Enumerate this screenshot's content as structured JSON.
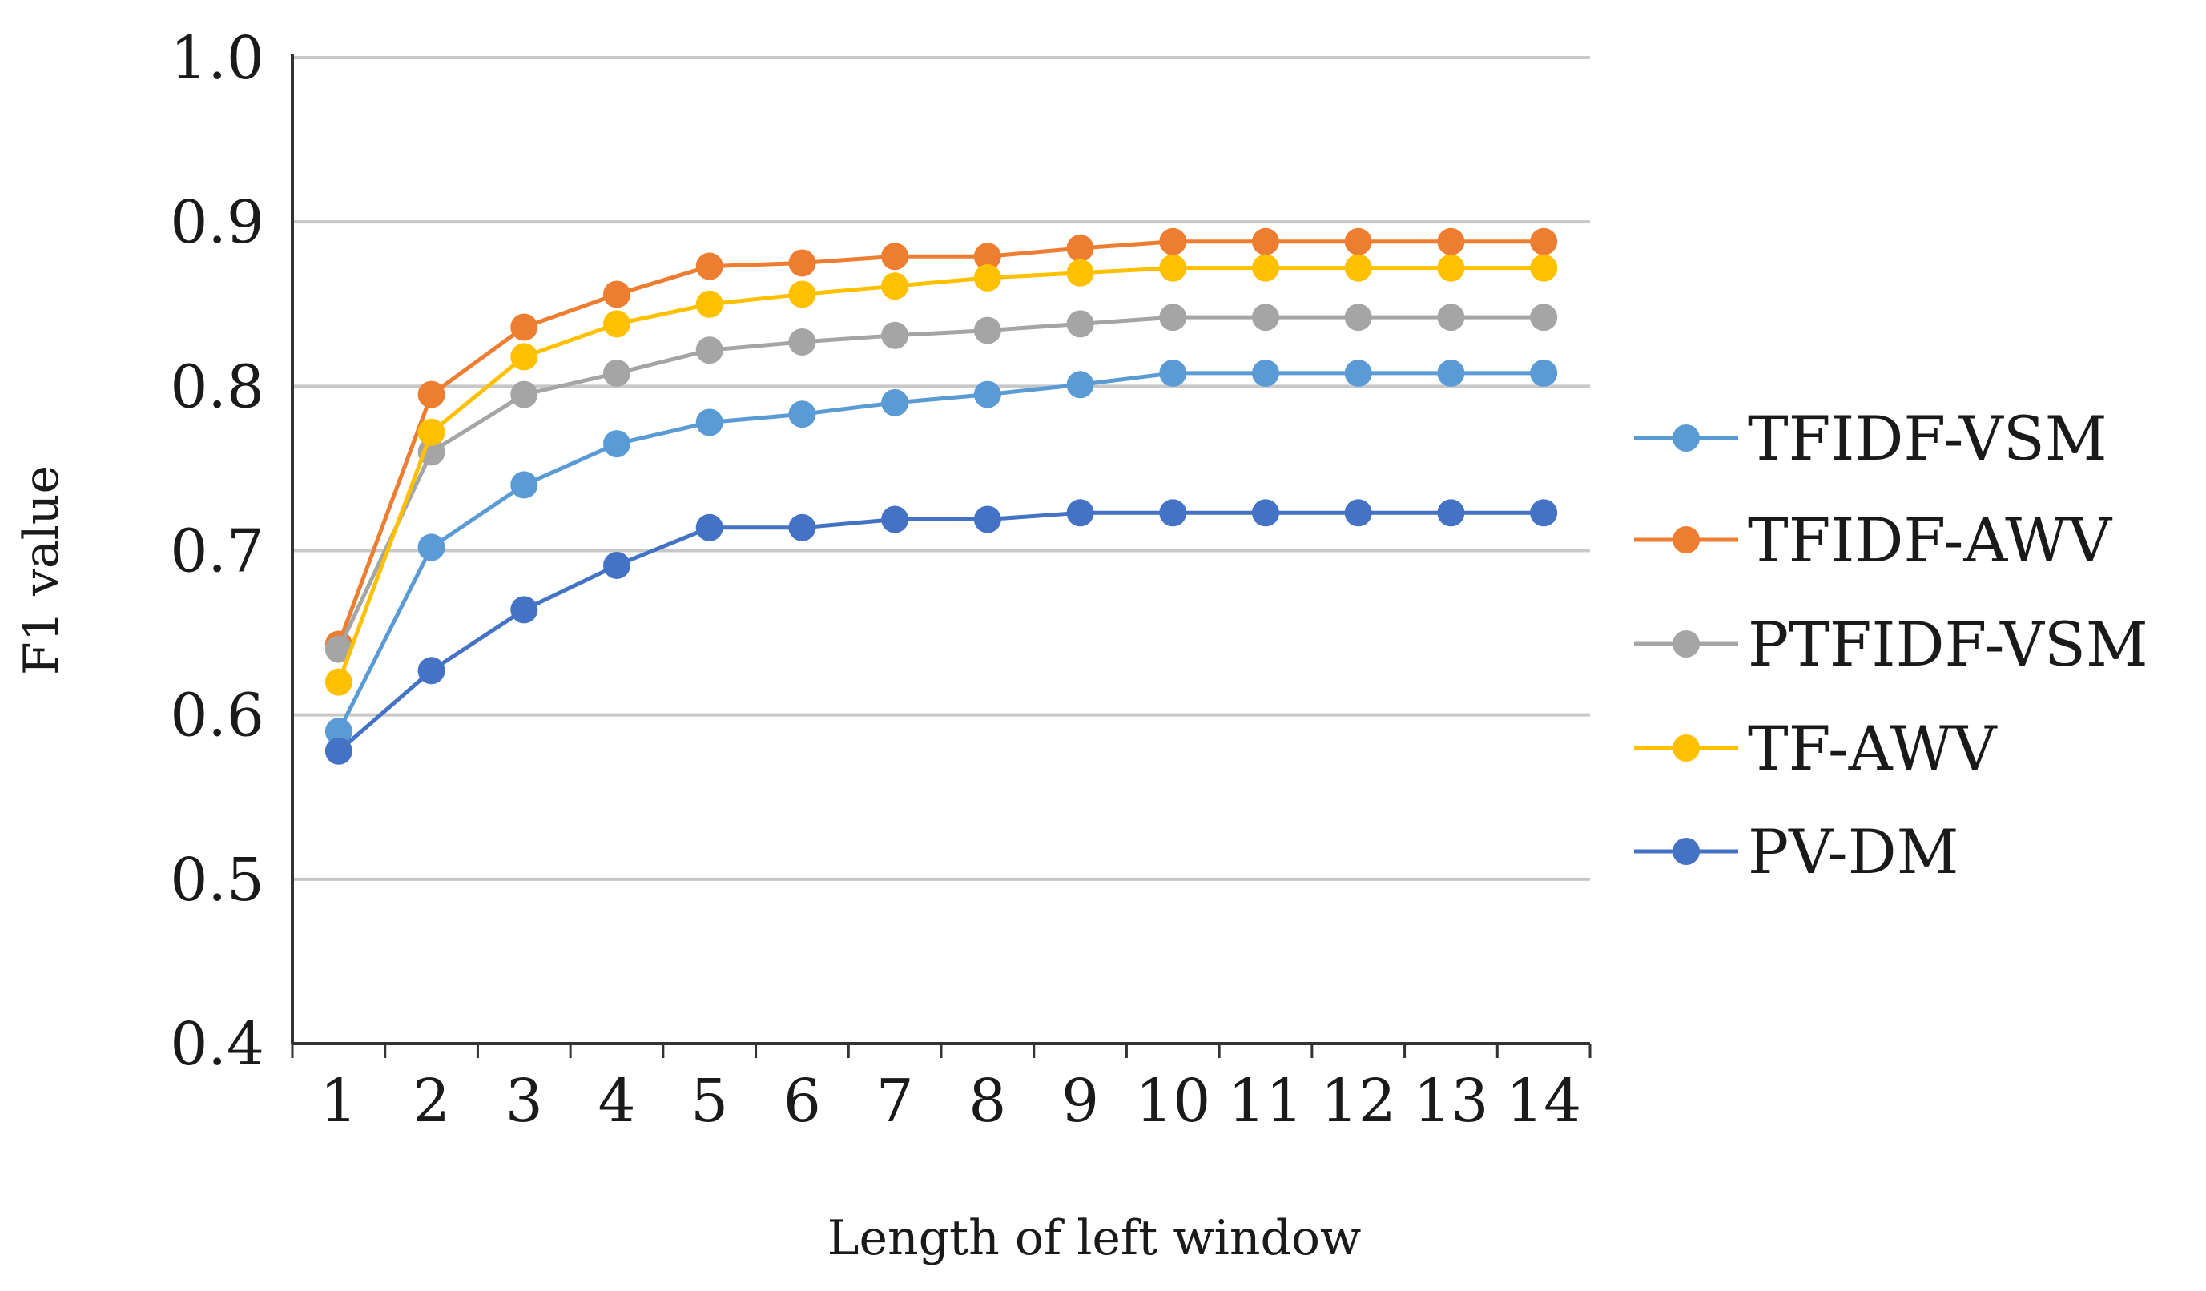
{
  "chart_data": {
    "type": "line",
    "title": "",
    "xlabel": "Length of left window",
    "ylabel": "F1 value",
    "ylim": [
      0.4,
      1.0
    ],
    "yticks": [
      "0.4",
      "0.5",
      "0.6",
      "0.7",
      "0.8",
      "0.9",
      "1.0"
    ],
    "grid": true,
    "legend_position": "right",
    "categories": [
      "1",
      "2",
      "3",
      "4",
      "5",
      "6",
      "7",
      "8",
      "9",
      "10",
      "11",
      "12",
      "13",
      "14"
    ],
    "series": [
      {
        "name": "TFIDF-VSM",
        "color": "#5B9BD5",
        "values": [
          0.59,
          0.702,
          0.74,
          0.765,
          0.778,
          0.783,
          0.79,
          0.795,
          0.801,
          0.808,
          0.808,
          0.808,
          0.808,
          0.808
        ]
      },
      {
        "name": "TFIDF-AWV",
        "color": "#ED7D31",
        "values": [
          0.643,
          0.795,
          0.836,
          0.856,
          0.873,
          0.875,
          0.879,
          0.879,
          0.884,
          0.888,
          0.888,
          0.888,
          0.888,
          0.888
        ]
      },
      {
        "name": "PTFIDF-VSM",
        "color": "#A5A5A5",
        "values": [
          0.64,
          0.76,
          0.795,
          0.808,
          0.822,
          0.827,
          0.831,
          0.834,
          0.838,
          0.842,
          0.842,
          0.842,
          0.842,
          0.842
        ]
      },
      {
        "name": "TF-AWV",
        "color": "#FFC000",
        "values": [
          0.62,
          0.772,
          0.818,
          0.838,
          0.85,
          0.856,
          0.861,
          0.866,
          0.869,
          0.872,
          0.872,
          0.872,
          0.872,
          0.872
        ]
      },
      {
        "name": "PV-DM",
        "color": "#4472C4",
        "values": [
          0.578,
          0.627,
          0.664,
          0.691,
          0.714,
          0.714,
          0.719,
          0.719,
          0.723,
          0.723,
          0.723,
          0.723,
          0.723,
          0.723
        ]
      }
    ]
  }
}
